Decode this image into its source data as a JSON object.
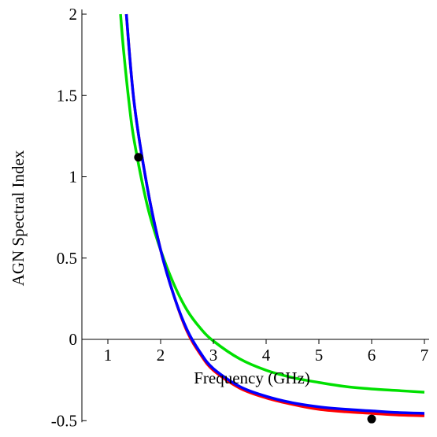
{
  "chart_data": {
    "type": "line",
    "title": "",
    "xlabel": "Frequency (GHz)",
    "ylabel": "AGN Spectral Index",
    "xlim": [
      0.5,
      7
    ],
    "ylim": [
      -0.5,
      2
    ],
    "grid": false,
    "x_ticks": [
      {
        "value": 1,
        "label": "1"
      },
      {
        "value": 2,
        "label": "2"
      },
      {
        "value": 3,
        "label": "3"
      },
      {
        "value": 4,
        "label": "4"
      },
      {
        "value": 5,
        "label": "5"
      },
      {
        "value": 6,
        "label": "6"
      },
      {
        "value": 7,
        "label": "7"
      }
    ],
    "y_ticks": [
      {
        "value": 2,
        "label": "2"
      },
      {
        "value": 1.5,
        "label": "1.5"
      },
      {
        "value": 1,
        "label": "1"
      },
      {
        "value": 0.5,
        "label": "0.5"
      },
      {
        "value": 0,
        "label": "0"
      },
      {
        "value": -0.5,
        "label": "-0.5"
      }
    ],
    "series": [
      {
        "color": "#ff0000",
        "x": [
          1.35,
          1.5,
          1.75,
          2.0,
          2.25,
          2.5,
          2.75,
          3.0,
          3.5,
          4.0,
          4.5,
          5.0,
          5.5,
          6.0,
          6.5,
          7.0
        ],
        "y": [
          2.0,
          1.45,
          0.93,
          0.55,
          0.27,
          0.05,
          -0.09,
          -0.19,
          -0.3,
          -0.36,
          -0.4,
          -0.43,
          -0.445,
          -0.455,
          -0.465,
          -0.47
        ]
      },
      {
        "color": "#0000ff",
        "x": [
          1.35,
          1.5,
          1.75,
          2.0,
          2.25,
          2.5,
          2.75,
          3.0,
          3.5,
          4.0,
          4.5,
          5.0,
          5.5,
          6.0,
          6.5,
          7.0
        ],
        "y": [
          2.0,
          1.45,
          0.93,
          0.55,
          0.27,
          0.06,
          -0.08,
          -0.18,
          -0.29,
          -0.35,
          -0.39,
          -0.415,
          -0.43,
          -0.44,
          -0.45,
          -0.455
        ]
      },
      {
        "color": "#00e000",
        "x": [
          1.24,
          1.3,
          1.4,
          1.5,
          1.75,
          2.0,
          2.25,
          2.5,
          2.75,
          3.0,
          3.5,
          4.0,
          4.5,
          5.0,
          5.5,
          6.0,
          6.5,
          7.0
        ],
        "y": [
          2.0,
          1.77,
          1.46,
          1.22,
          0.82,
          0.55,
          0.34,
          0.18,
          0.07,
          -0.01,
          -0.12,
          -0.19,
          -0.235,
          -0.265,
          -0.29,
          -0.305,
          -0.315,
          -0.325
        ]
      }
    ],
    "points": [
      {
        "x": 1.58,
        "y": 1.12,
        "color": "#000000"
      },
      {
        "x": 6.0,
        "y": -0.49,
        "color": "#000000"
      }
    ]
  }
}
